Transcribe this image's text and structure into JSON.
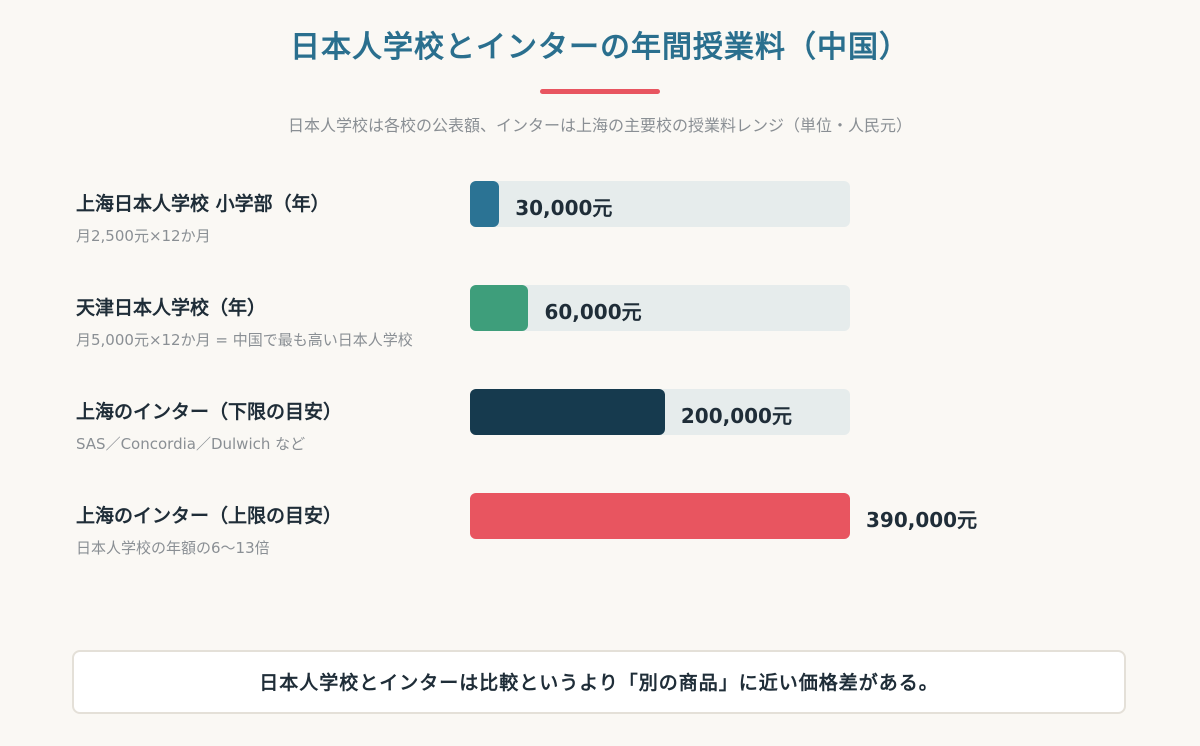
{
  "header": {
    "title": "日本人学校とインターの年間授業料（中国）",
    "subtitle": "日本人学校は各校の公表額、インターは上海の主要校の授業料レンジ（単位・人民元）"
  },
  "chart_data": {
    "type": "bar",
    "orientation": "horizontal",
    "categories": [
      "上海日本人学校 小学部（年）",
      "天津日本人学校（年）",
      "上海のインター（下限の目安）",
      "上海のインター（上限の目安）"
    ],
    "notes": [
      "月2,500元×12か月",
      "月5,000元×12か月 = 中国で最も高い日本人学校",
      "SAS／Concordia／Dulwich など",
      "日本人学校の年額の6〜13倍"
    ],
    "values": [
      30000,
      60000,
      200000,
      390000
    ],
    "value_labels": [
      "30,000元",
      "60,000元",
      "200,000元",
      "390,000元"
    ],
    "colors": [
      "#2b7394",
      "#3e9e7b",
      "#163a4e",
      "#e85560"
    ],
    "xlim": [
      0,
      390000
    ],
    "grid": false,
    "legend": "none"
  },
  "footer": {
    "text": "日本人学校とインターは比較というより「別の商品」に近い価格差がある。"
  }
}
